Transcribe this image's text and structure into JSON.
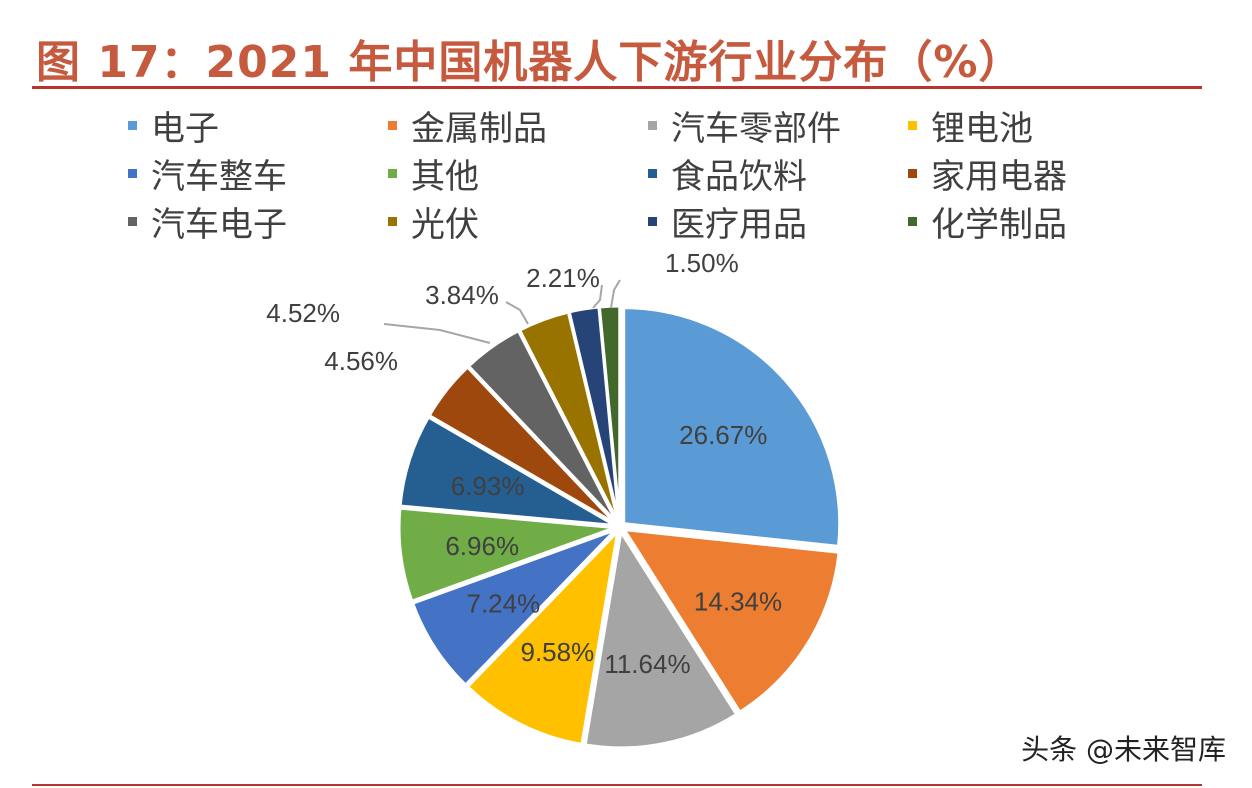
{
  "chart_data": {
    "type": "pie",
    "title": "图 17：2021 年中国机器人下游行业分布（%）",
    "legend_position": "top",
    "start_angle": "12 o'clock, clockwise",
    "categories": [
      "电子",
      "金属制品",
      "汽车零部件",
      "锂电池",
      "汽车整车",
      "其他",
      "食品饮料",
      "家用电器",
      "汽车电子",
      "光伏",
      "医疗用品",
      "化学制品"
    ],
    "values": [
      26.67,
      14.34,
      11.64,
      9.58,
      7.24,
      6.96,
      6.93,
      4.56,
      4.52,
      3.84,
      2.21,
      1.5
    ],
    "labels": [
      "26.67%",
      "14.34%",
      "11.64%",
      "9.58%",
      "7.24%",
      "6.96%",
      "6.93%",
      "4.56%",
      "4.52%",
      "3.84%",
      "2.21%",
      "1.50%"
    ],
    "colors": [
      "#5B9BD5",
      "#ED7D31",
      "#A5A5A5",
      "#FFC000",
      "#4472C4",
      "#70AD47",
      "#255E91",
      "#9E480E",
      "#636363",
      "#997300",
      "#264478",
      "#43682B"
    ]
  },
  "watermark": "头条 @未来智库"
}
